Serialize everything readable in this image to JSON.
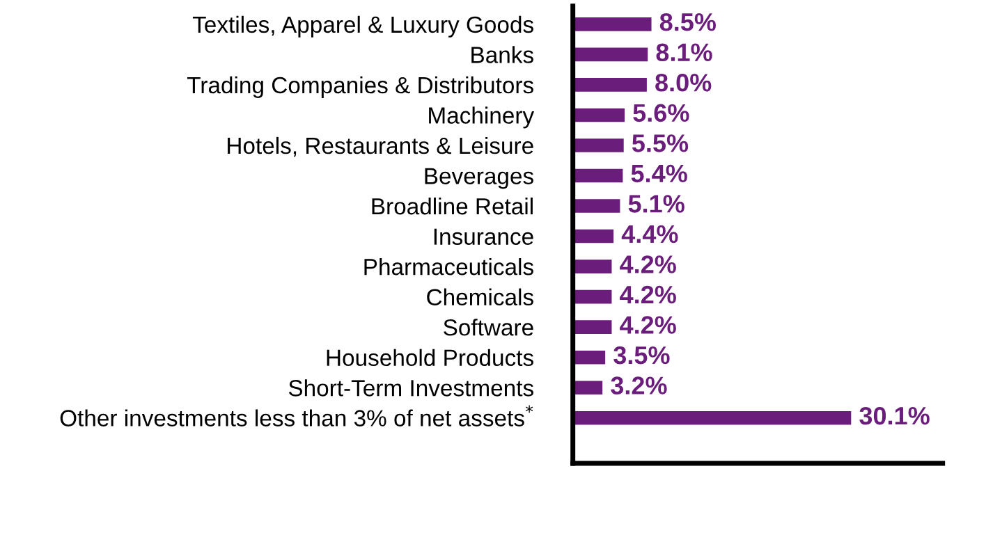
{
  "chart_data": {
    "type": "bar",
    "orientation": "horizontal",
    "categories": [
      "Textiles, Apparel & Luxury Goods",
      "Banks",
      "Trading Companies & Distributors",
      "Machinery",
      "Hotels, Restaurants & Leisure",
      "Beverages",
      "Broadline Retail",
      "Insurance",
      "Pharmaceuticals",
      "Chemicals",
      "Software",
      "Household Products",
      "Short-Term Investments",
      "Other investments less than 3% of net assets$^{*}$"
    ],
    "values": [
      8.5,
      8.1,
      8.0,
      5.6,
      5.5,
      5.4,
      5.1,
      4.4,
      4.2,
      4.2,
      4.2,
      3.5,
      3.2,
      30.1
    ],
    "value_labels": [
      "8.5%",
      "8.1%",
      "8.0%",
      "5.6%",
      "5.5%",
      "5.4%",
      "5.1%",
      "4.4%",
      "4.2%",
      "4.2%",
      "4.2%",
      "3.5%",
      "3.2%",
      "30.1%"
    ],
    "color": "#6b1d7b",
    "xlim": [
      0,
      40
    ],
    "tick_labels": "y",
    "grid": false,
    "legend": false
  }
}
